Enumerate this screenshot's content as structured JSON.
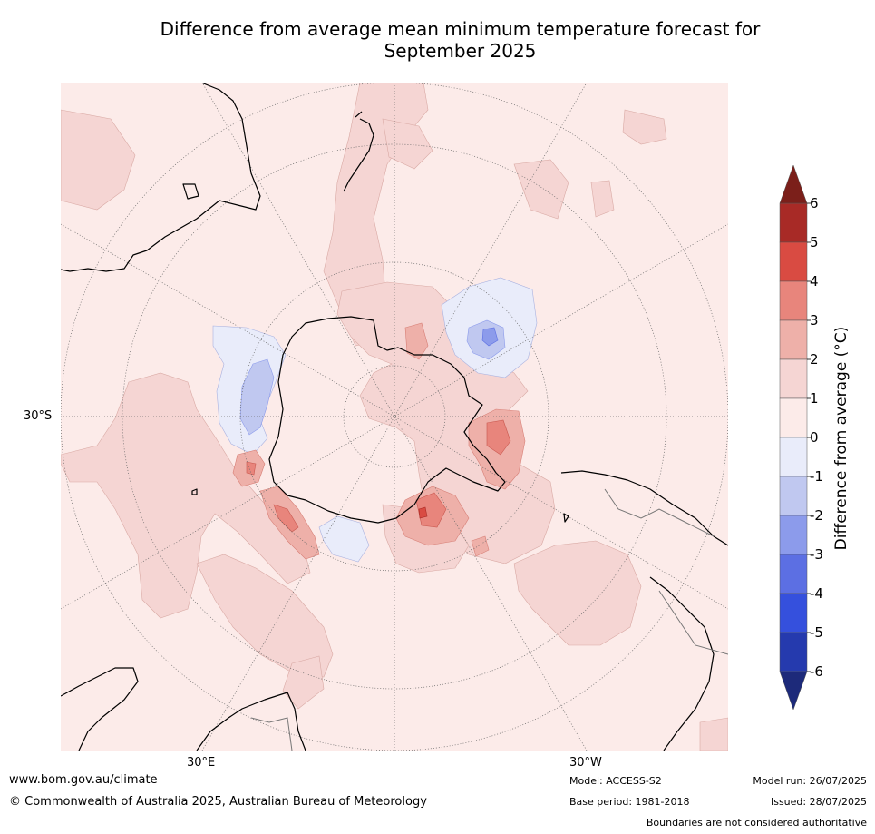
{
  "title_line1": "Difference from average mean minimum temperature forecast for",
  "title_line2": "September 2025",
  "graticule_labels": {
    "lat": "30°S",
    "lon_east": "30°E",
    "lon_west": "30°W"
  },
  "colorbar": {
    "label": "Difference from average (°C)",
    "ticks": [
      "6",
      "5",
      "4",
      "3",
      "2",
      "1",
      "0",
      "-1",
      "-2",
      "-3",
      "-4",
      "-5",
      "-6"
    ],
    "colors": {
      "over": "#7b1f1a",
      "5_6": "#a82a26",
      "4_5": "#d94b42",
      "3_4": "#e8857c",
      "2_3": "#eeb0a9",
      "1_2": "#f5d5d3",
      "0_1": "#fcebe9",
      "m1_0": "#e9ecfa",
      "m2_m1": "#c0c8f0",
      "m3_m2": "#8c9beb",
      "m4_m3": "#5c6fe3",
      "m5_m4": "#3550dd",
      "m6_m5": "#253aae",
      "under": "#1d2a7a"
    }
  },
  "footer": {
    "website": "www.bom.gov.au/climate",
    "copyright": "© Commonwealth of Australia 2025, Australian Bureau of Meteorology",
    "model": "Model: ACCESS-S2",
    "base_period": "Base period: 1981-2018",
    "model_run": "Model run: 26/07/2025",
    "issued": "Issued: 28/07/2025",
    "disclaimer": "Boundaries are not considered authoritative"
  }
}
